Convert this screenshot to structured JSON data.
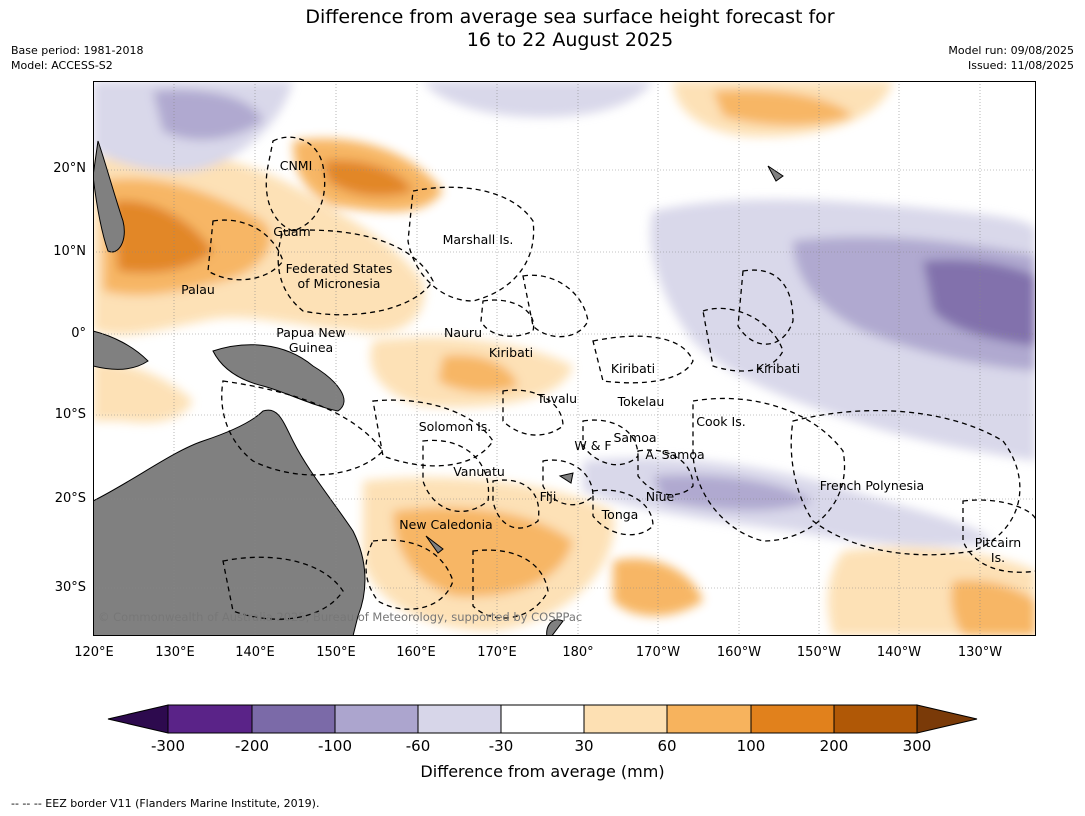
{
  "header": {
    "title_line1": "Difference from average sea surface height forecast for",
    "title_line2": "16 to 22 August 2025",
    "base_period": "Base period: 1981-2018",
    "model": "Model: ACCESS-S2",
    "model_run": "Model run: 09/08/2025",
    "issued": "Issued: 11/08/2025"
  },
  "map": {
    "lat_labels": [
      "20°N",
      "10°N",
      "0°",
      "10°S",
      "20°S",
      "30°S"
    ],
    "lon_labels": [
      "120°E",
      "130°E",
      "140°E",
      "150°E",
      "160°E",
      "170°E",
      "180°",
      "170°W",
      "160°W",
      "150°W",
      "140°W",
      "130°W"
    ],
    "region_labels": [
      "CNMI",
      "Guam",
      "Marshall Is.",
      "Federated States",
      "of Micronesia",
      "Palau",
      "Papua New",
      "Guinea",
      "Nauru",
      "Kiribati",
      "Kiribati",
      "Kiribati",
      "Tuvalu",
      "Tokelau",
      "Solomon Is.",
      "Cook Is.",
      "Samoa",
      "W & F",
      "A. Samoa",
      "Vanuatu",
      "Fiji",
      "Niue",
      "French Polynesia",
      "Tonga",
      "New Caledonia",
      "Pitcairn",
      "Is."
    ],
    "copyright": "© Commonwealth of Australia 2025, Bureau of Meteorology, supported by COSPPac",
    "land_color": "#808080"
  },
  "colorbar": {
    "ticks": [
      "-300",
      "-200",
      "-100",
      "-60",
      "-30",
      "30",
      "60",
      "100",
      "200",
      "300"
    ],
    "colors": [
      "#2d0a4e",
      "#5a2388",
      "#7b6aa8",
      "#aca5ce",
      "#d7d6e9",
      "#ffffff",
      "#fde0b3",
      "#f7b35d",
      "#e1811c",
      "#b05806",
      "#7a3a08"
    ],
    "label": "Difference from average (mm)"
  },
  "footnote": "--  --  -- EEZ border V11 (Flanders Marine Institute, 2019)."
}
